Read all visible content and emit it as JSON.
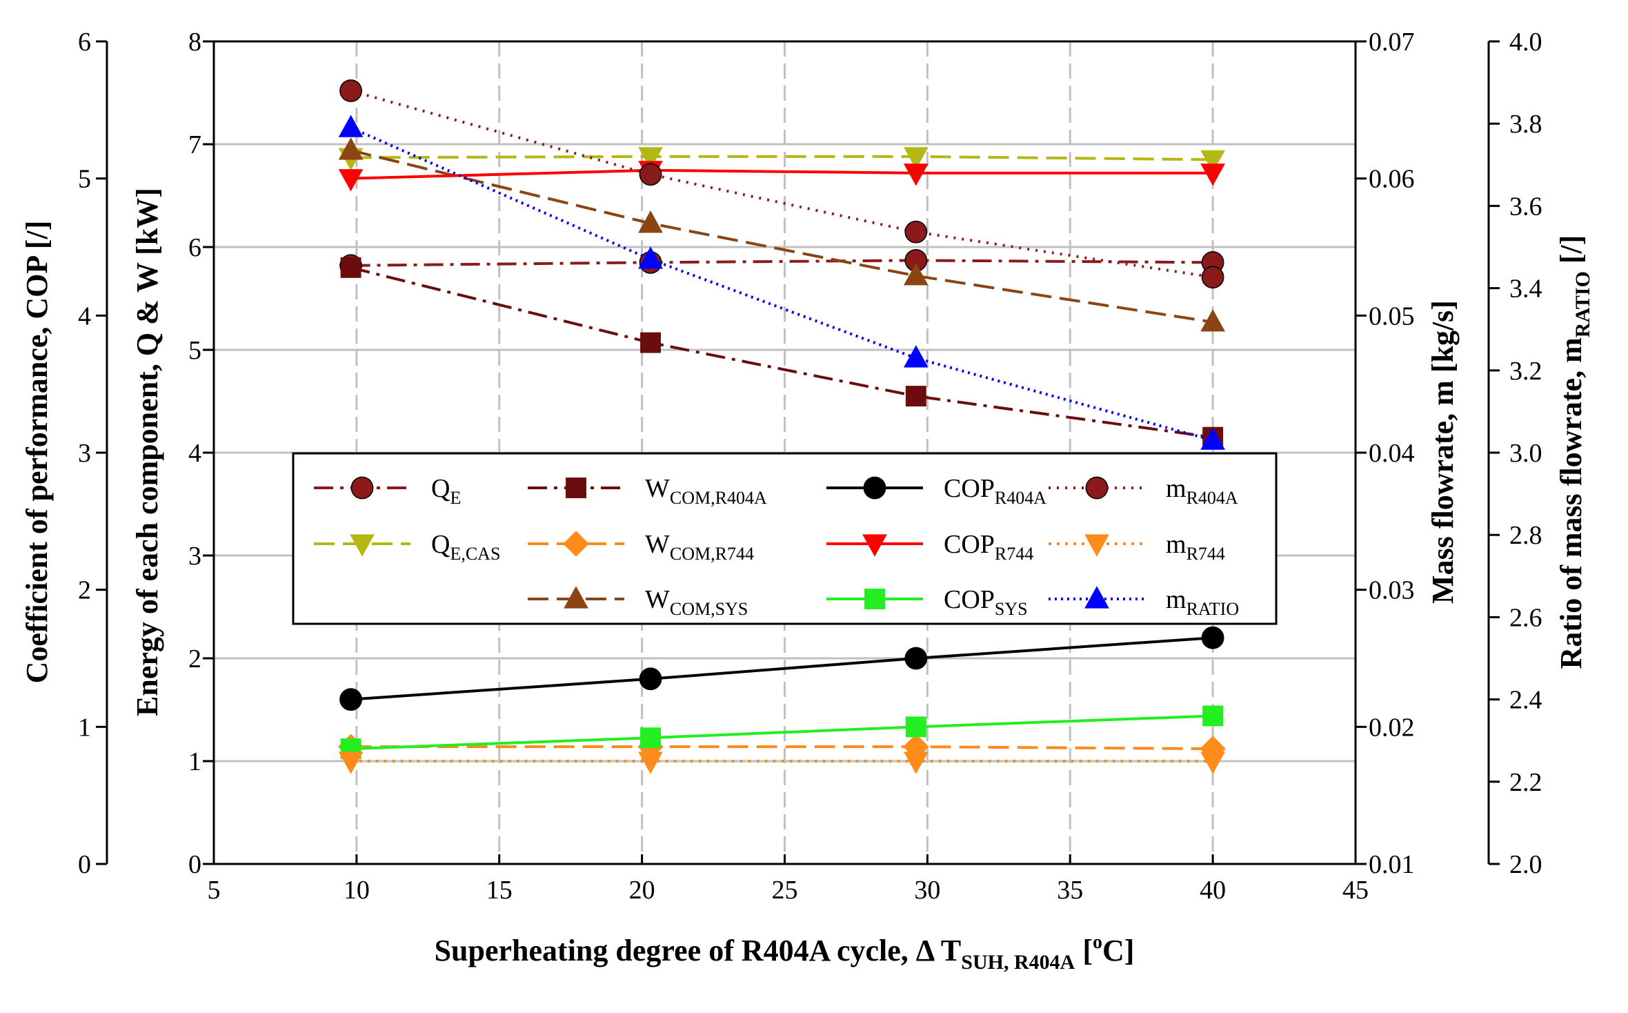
{
  "chart_data": {
    "type": "line",
    "xlabel": {
      "main": "Superheating degree of R404A cycle, Δ  T",
      "sub": "SUH, R404A",
      "sup": "o",
      "tail": "C]",
      "bracket": " ["
    },
    "x_ticks": [
      "5",
      "10",
      "15",
      "20",
      "25",
      "30",
      "35",
      "40",
      "45"
    ],
    "xlim": [
      5,
      45
    ],
    "axes": {
      "cop": {
        "label": "Coefficient of performance, COP [/]",
        "ticks": [
          "0",
          "1",
          "2",
          "3",
          "4",
          "5",
          "6"
        ],
        "range": [
          0,
          6
        ]
      },
      "qw": {
        "label": "Energy of each component, Q & W [kW]",
        "ticks": [
          "0",
          "1",
          "2",
          "3",
          "4",
          "5",
          "6",
          "7",
          "8"
        ],
        "range": [
          0,
          8
        ]
      },
      "mass": {
        "label": "Mass flowrate, m [kg/s]",
        "ticks": [
          "0.01",
          "0.02",
          "0.03",
          "0.04",
          "0.05",
          "0.06",
          "0.07"
        ],
        "range": [
          0.01,
          0.07
        ]
      },
      "ratio": {
        "label_main": "Ratio of mass flowrate, m",
        "label_sub": "RATIO",
        "label_tail": " [/]",
        "ticks": [
          "2.0",
          "2.2",
          "2.4",
          "2.6",
          "2.8",
          "3.0",
          "3.2",
          "3.4",
          "3.6",
          "3.8",
          "4.0"
        ],
        "range": [
          2.0,
          4.0
        ]
      }
    },
    "x": [
      9.8,
      20.3,
      29.6,
      40.0
    ],
    "series": [
      {
        "id": "qe",
        "name": "Q",
        "sub": "E",
        "axis": "qw",
        "values": [
          5.82,
          5.85,
          5.87,
          5.85
        ],
        "color": "#8b1a1a",
        "marker": "circle",
        "dash": "28,10,5,10"
      },
      {
        "id": "qecas",
        "name": "Q",
        "sub": "E,CAS",
        "axis": "qw",
        "values": [
          6.87,
          6.88,
          6.88,
          6.85
        ],
        "color": "#b5b814",
        "marker": "tri-down",
        "dash": "30,12"
      },
      {
        "id": "wr404a",
        "name": "W",
        "sub": "COM,R404A",
        "axis": "qw",
        "values": [
          5.8,
          5.07,
          4.55,
          4.15
        ],
        "color": "#6b0d0d",
        "marker": "square",
        "dash": "28,10,5,10"
      },
      {
        "id": "wr744",
        "name": "W",
        "sub": "COM,R744",
        "axis": "qw",
        "values": [
          1.14,
          1.14,
          1.14,
          1.12
        ],
        "color": "#ff8c1a",
        "marker": "diamond",
        "dash": "30,12"
      },
      {
        "id": "wsys",
        "name": "W",
        "sub": "COM,SYS",
        "axis": "qw",
        "values": [
          6.94,
          6.23,
          5.72,
          5.27
        ],
        "color": "#8b4513",
        "marker": "tri-up",
        "dash": "30,12"
      },
      {
        "id": "copr404a",
        "name": "COP",
        "sub": "R404A",
        "axis": "cop",
        "values": [
          1.2,
          1.35,
          1.5,
          1.65
        ],
        "color": "#000000",
        "marker": "circle",
        "dash": ""
      },
      {
        "id": "copr744",
        "name": "COP",
        "sub": "R744",
        "axis": "cop",
        "values": [
          5.0,
          5.06,
          5.04,
          5.04
        ],
        "color": "#ff0000",
        "marker": "tri-down",
        "dash": ""
      },
      {
        "id": "copsys",
        "name": "COP",
        "sub": "SYS",
        "axis": "cop",
        "values": [
          0.84,
          0.92,
          1.0,
          1.08
        ],
        "color": "#22ee22",
        "marker": "square",
        "dash": ""
      },
      {
        "id": "mr404a",
        "name": "m",
        "sub": "R404A",
        "axis": "mass",
        "values": [
          0.0664,
          0.0603,
          0.0561,
          0.0528
        ],
        "color": "#8b1a1a",
        "marker": "circle",
        "dash": "3,9"
      },
      {
        "id": "mr744",
        "name": "m",
        "sub": "R744",
        "axis": "mass",
        "values": [
          0.0175,
          0.0175,
          0.0175,
          0.0175
        ],
        "color": "#ff8c1a",
        "marker": "tri-down",
        "dash": "4,8"
      },
      {
        "id": "mratio",
        "name": "m",
        "sub": "RATIO",
        "axis": "ratio",
        "values": [
          3.79,
          3.47,
          3.23,
          3.03
        ],
        "color": "#0000ff",
        "marker": "tri-up",
        "dash": "3,6"
      }
    ],
    "legend_order": [
      "qe",
      "wr404a",
      "copr404a",
      "mr404a",
      "qecas",
      "wr744",
      "copr744",
      "mr744",
      "wsys",
      "copsys",
      "mratio"
    ]
  }
}
